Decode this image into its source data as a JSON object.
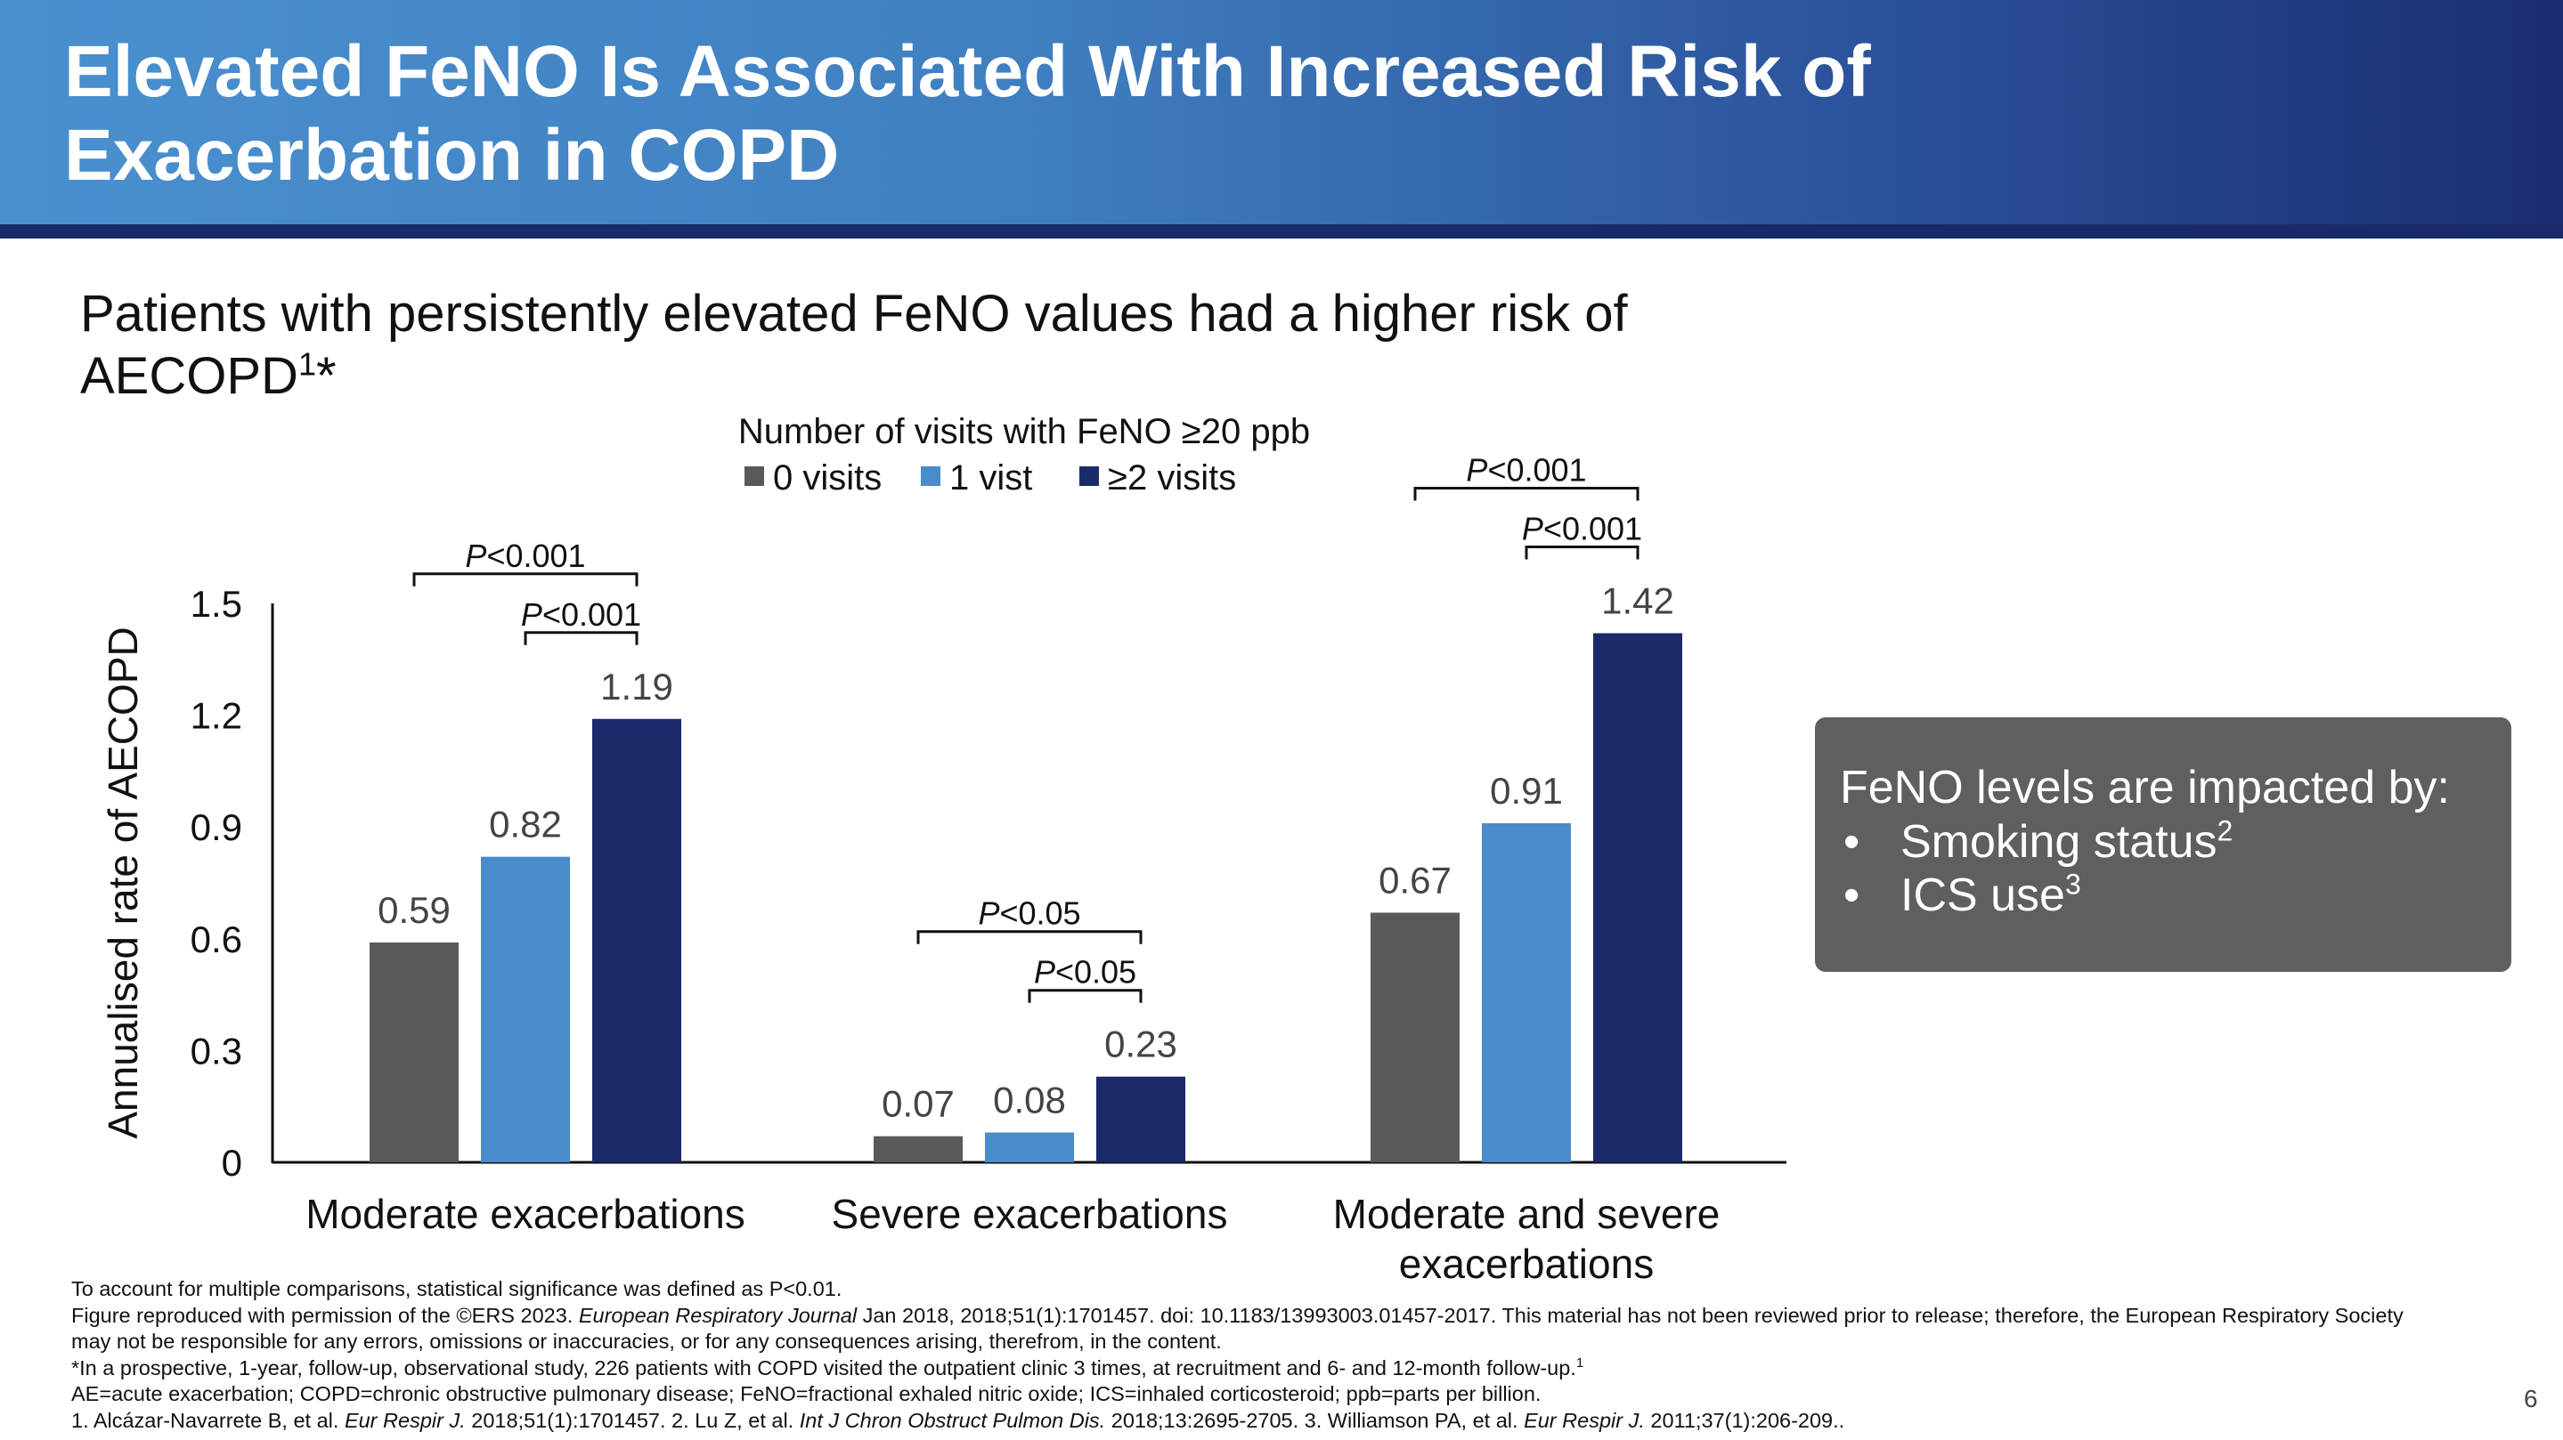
{
  "slide": {
    "title": "Elevated FeNO Is Associated With Increased Risk of Exacerbation in COPD",
    "subtitle_main": "Patients with persistently elevated FeNO values had a higher risk of AECOPD",
    "subtitle_sup": "1",
    "subtitle_star": "*",
    "page_number": "6"
  },
  "colors": {
    "visits0": "#595959",
    "visits1": "#4a8bc9",
    "visits2": "#1b2a6b",
    "header_dark": "#1b2a6b",
    "info_box": "#5f5f5f"
  },
  "chart_data": {
    "type": "bar",
    "legend_title": "Number of visits with FeNO ≥20 ppb",
    "legend_position": "top-center",
    "ylabel": "Annualised rate of AECOPD",
    "xlabel": "",
    "ylim": [
      0,
      1.5
    ],
    "yticks": [
      0,
      0.3,
      0.6,
      0.9,
      1.2,
      1.5
    ],
    "ytick_labels": [
      "0",
      "0.3",
      "0.6",
      "0.9",
      "1.2",
      "1.5"
    ],
    "grid": false,
    "categories": [
      [
        "Moderate exacerbations"
      ],
      [
        "Severe exacerbations"
      ],
      [
        "Moderate and severe",
        "exacerbations"
      ]
    ],
    "series": [
      {
        "name": "0 visits",
        "values": [
          0.59,
          0.07,
          0.67
        ],
        "labels": [
          "0.59",
          "0.07",
          "0.67"
        ],
        "color": "#595959"
      },
      {
        "name": "1 vist",
        "values": [
          0.82,
          0.08,
          0.91
        ],
        "labels": [
          "0.82",
          "0.08",
          "0.91"
        ],
        "color": "#4a8bc9"
      },
      {
        "name": "≥2 visits",
        "values": [
          1.19,
          0.23,
          1.42
        ],
        "labels": [
          "1.19",
          "0.23",
          "1.42"
        ],
        "color": "#1b2a6b"
      }
    ],
    "significance": [
      {
        "category": 0,
        "from_series": 0,
        "to_series": 2,
        "p_italic": "P",
        "p_rest": "<0.001"
      },
      {
        "category": 0,
        "from_series": 1,
        "to_series": 2,
        "p_italic": "P",
        "p_rest": "<0.001"
      },
      {
        "category": 1,
        "from_series": 0,
        "to_series": 2,
        "p_italic": "P",
        "p_rest": "<0.05"
      },
      {
        "category": 1,
        "from_series": 1,
        "to_series": 2,
        "p_italic": "P",
        "p_rest": "<0.05"
      },
      {
        "category": 2,
        "from_series": 0,
        "to_series": 2,
        "p_italic": "P",
        "p_rest": "<0.001"
      },
      {
        "category": 2,
        "from_series": 1,
        "to_series": 2,
        "p_italic": "P",
        "p_rest": "<0.001"
      }
    ]
  },
  "info_box": {
    "heading": "FeNO levels are impacted by:",
    "items": [
      {
        "text": "Smoking status",
        "sup": "2"
      },
      {
        "text": "ICS use",
        "sup": "3"
      }
    ],
    "bullet": "•"
  },
  "footnotes": {
    "line1": "To account for multiple comparisons, statistical significance was defined as P<0.01.",
    "line2_a": "Figure reproduced with permission of the ©ERS 2023. ",
    "line2_journal": "European Respiratory Journal",
    "line2_b": " Jan 2018, 2018;51(1):1701457. doi: 10.1183/13993003.01457-2017. This material has not been reviewed prior to release; therefore, the European Respiratory Society may not be responsible for any errors, omissions or inaccuracies, or for any consequences arising, therefrom, in the content.",
    "line3": "*In a prospective, 1-year, follow-up, observational study, 226 patients with COPD visited the outpatient clinic 3 times, at recruitment and 6- and 12-month follow-up.",
    "line3_sup": "1",
    "line4": "AE=acute exacerbation; COPD=chronic obstructive pulmonary disease; FeNO=fractional exhaled nitric oxide; ICS=inhaled corticosteroid; ppb=parts per billion.",
    "ref1_a": "1. Alcázar-Navarrete B, et al. ",
    "ref1_j": "Eur Respir J.",
    "ref1_b": " 2018;51(1):1701457. 2. Lu Z, et al. ",
    "ref2_j": "Int J Chron Obstruct Pulmon Dis.",
    "ref2_b": " 2018;13:2695-2705. 3. Williamson PA, et al. ",
    "ref3_j": "Eur Respir J.",
    "ref3_b": " 2011;37(1):206-209.."
  }
}
